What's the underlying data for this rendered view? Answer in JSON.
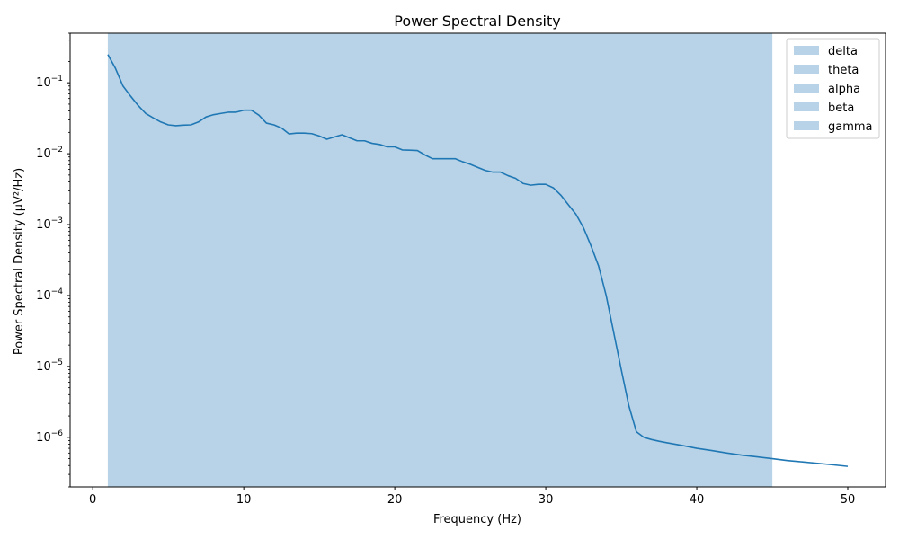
{
  "chart_data": {
    "type": "line",
    "title": "Power Spectral Density",
    "xlabel": "Frequency (Hz)",
    "ylabel": "Power Spectral Density (µV²/Hz)",
    "xlim": [
      -1.5,
      52.5
    ],
    "ylim": [
      2e-07,
      0.5
    ],
    "yscale": "log",
    "xticks": [
      0,
      10,
      20,
      30,
      40,
      50
    ],
    "xtick_labels": [
      "0",
      "10",
      "20",
      "30",
      "40",
      "50"
    ],
    "yticks": [
      1e-06,
      1e-05,
      0.0001,
      0.001,
      0.01,
      0.1
    ],
    "ytick_labels": [
      {
        "base": "10",
        "exp": "−6"
      },
      {
        "base": "10",
        "exp": "−5"
      },
      {
        "base": "10",
        "exp": "−4"
      },
      {
        "base": "10",
        "exp": "−3"
      },
      {
        "base": "10",
        "exp": "−2"
      },
      {
        "base": "10",
        "exp": "−1"
      }
    ],
    "grid": false,
    "legend_position": "top-right",
    "colors": {
      "line": "#1f77b4",
      "band": "#b8d3e7"
    },
    "bands": [
      {
        "name": "delta",
        "range": [
          1,
          45
        ]
      },
      {
        "name": "theta",
        "range": [
          1,
          45
        ]
      },
      {
        "name": "alpha",
        "range": [
          1,
          45
        ]
      },
      {
        "name": "beta",
        "range": [
          1,
          45
        ]
      },
      {
        "name": "gamma",
        "range": [
          1,
          45
        ]
      }
    ],
    "series": [
      {
        "x": [
          1,
          1.5,
          2,
          2.5,
          3,
          3.5,
          4,
          4.5,
          5,
          5.5,
          6,
          6.5,
          7,
          7.5,
          8,
          8.5,
          9,
          9.5,
          10,
          10.5,
          11,
          11.5,
          12,
          12.5,
          13,
          13.5,
          14,
          14.5,
          15,
          15.5,
          16,
          16.5,
          17,
          17.5,
          18,
          18.5,
          19,
          19.5,
          20,
          20.5,
          21,
          21.5,
          22,
          22.5,
          23,
          23.5,
          24,
          24.5,
          25,
          25.5,
          26,
          26.5,
          27,
          27.5,
          28,
          28.5,
          29,
          29.5,
          30,
          30.5,
          31,
          31.5,
          32,
          32.5,
          33,
          33.5,
          34,
          34.5,
          35,
          35.5,
          36,
          36.5,
          37,
          37.5,
          38,
          39,
          40,
          41,
          42,
          43,
          44,
          45,
          46,
          47,
          48,
          49,
          50
        ],
        "y": [
          0.25,
          0.16,
          0.09,
          0.065,
          0.048,
          0.037,
          0.032,
          0.028,
          0.0255,
          0.0248,
          0.0253,
          0.0255,
          0.028,
          0.033,
          0.0355,
          0.037,
          0.0385,
          0.0385,
          0.041,
          0.041,
          0.035,
          0.027,
          0.0255,
          0.023,
          0.019,
          0.0195,
          0.0195,
          0.0192,
          0.0178,
          0.016,
          0.0172,
          0.0185,
          0.0168,
          0.0152,
          0.0152,
          0.014,
          0.0135,
          0.0125,
          0.0125,
          0.0113,
          0.0112,
          0.0111,
          0.0096,
          0.0085,
          0.0085,
          0.0085,
          0.0085,
          0.0077,
          0.0071,
          0.0064,
          0.0058,
          0.0055,
          0.0055,
          0.0049,
          0.0045,
          0.0038,
          0.0036,
          0.0037,
          0.0037,
          0.0033,
          0.0026,
          0.0019,
          0.0014,
          0.0009,
          0.0005,
          0.00026,
          0.0001,
          3e-05,
          9e-06,
          2.8e-06,
          1.2e-06,
          1e-06,
          9.3e-07,
          8.8e-07,
          8.4e-07,
          7.7e-07,
          7e-07,
          6.5e-07,
          6e-07,
          5.6e-07,
          5.3e-07,
          5e-07,
          4.7e-07,
          4.5e-07,
          4.3e-07,
          4.1e-07,
          3.9e-07
        ]
      }
    ]
  }
}
